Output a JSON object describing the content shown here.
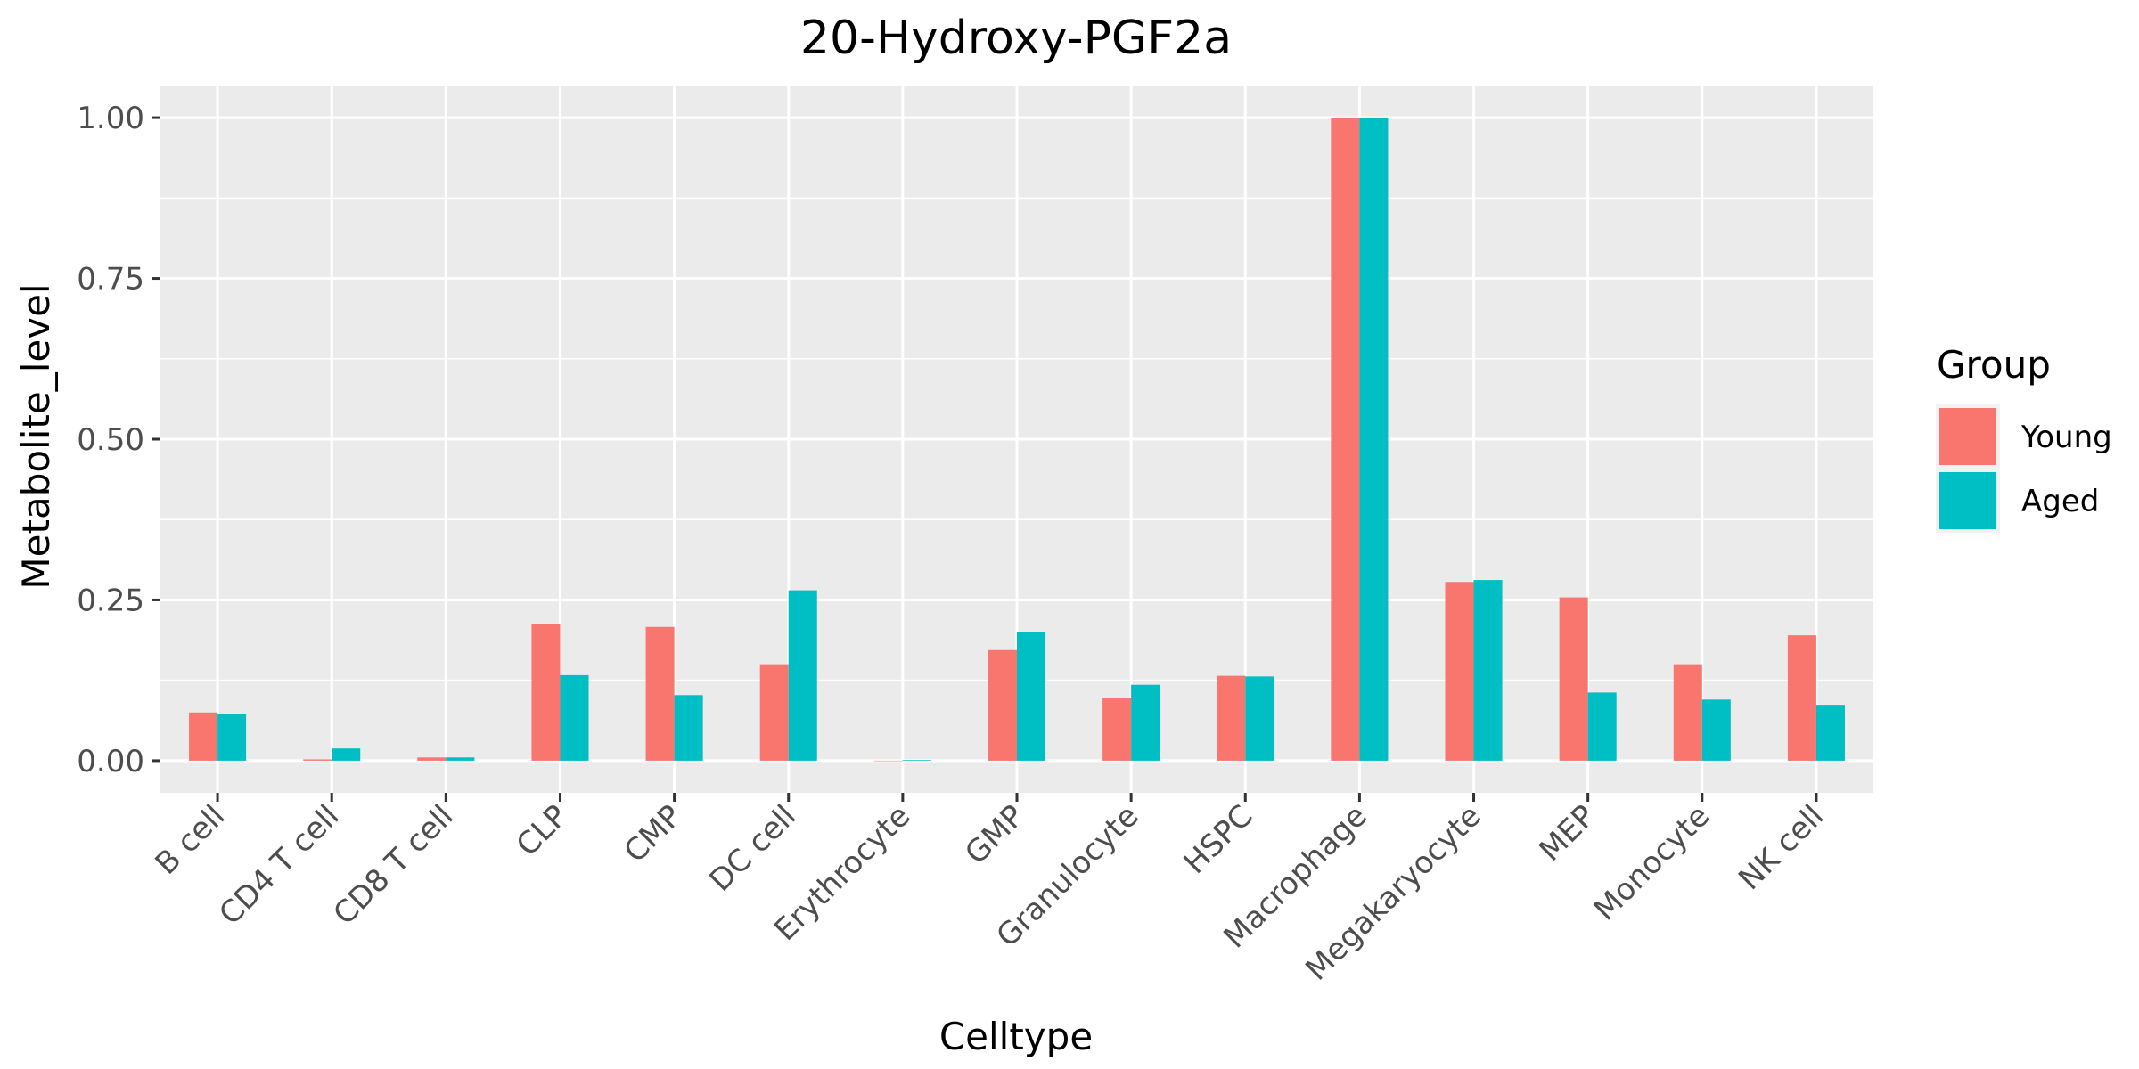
{
  "chart_data": {
    "type": "bar",
    "title": "20-Hydroxy-PGF2a",
    "xlabel": "Celltype",
    "ylabel": "Metabolite_level",
    "categories": [
      "B cell",
      "CD4 T cell",
      "CD8 T cell",
      "CLP",
      "CMP",
      "DC cell",
      "Erythrocyte",
      "GMP",
      "Granulocyte",
      "HSPC",
      "Macrophage",
      "Megakaryocyte",
      "MEP",
      "Monocyte",
      "NK cell"
    ],
    "series": [
      {
        "name": "Young",
        "color": "#F8766D",
        "values": [
          0.075,
          0.002,
          0.005,
          0.212,
          0.208,
          0.15,
          0.0,
          0.172,
          0.098,
          0.132,
          1.0,
          0.278,
          0.254,
          0.15,
          0.195
        ]
      },
      {
        "name": "Aged",
        "color": "#00BFC4",
        "values": [
          0.073,
          0.019,
          0.005,
          0.133,
          0.102,
          0.265,
          0.001,
          0.2,
          0.118,
          0.131,
          1.0,
          0.281,
          0.106,
          0.095,
          0.087
        ]
      }
    ],
    "ylim": [
      -0.05,
      1.05
    ],
    "yticks": [
      0.0,
      0.25,
      0.5,
      0.75,
      1.0
    ],
    "ytick_labels": [
      "0.00",
      "0.25",
      "0.50",
      "0.75",
      "1.00"
    ],
    "grid": true,
    "panel_background": "#EBEBEB",
    "legend": {
      "title": "Group",
      "position": "right"
    }
  }
}
